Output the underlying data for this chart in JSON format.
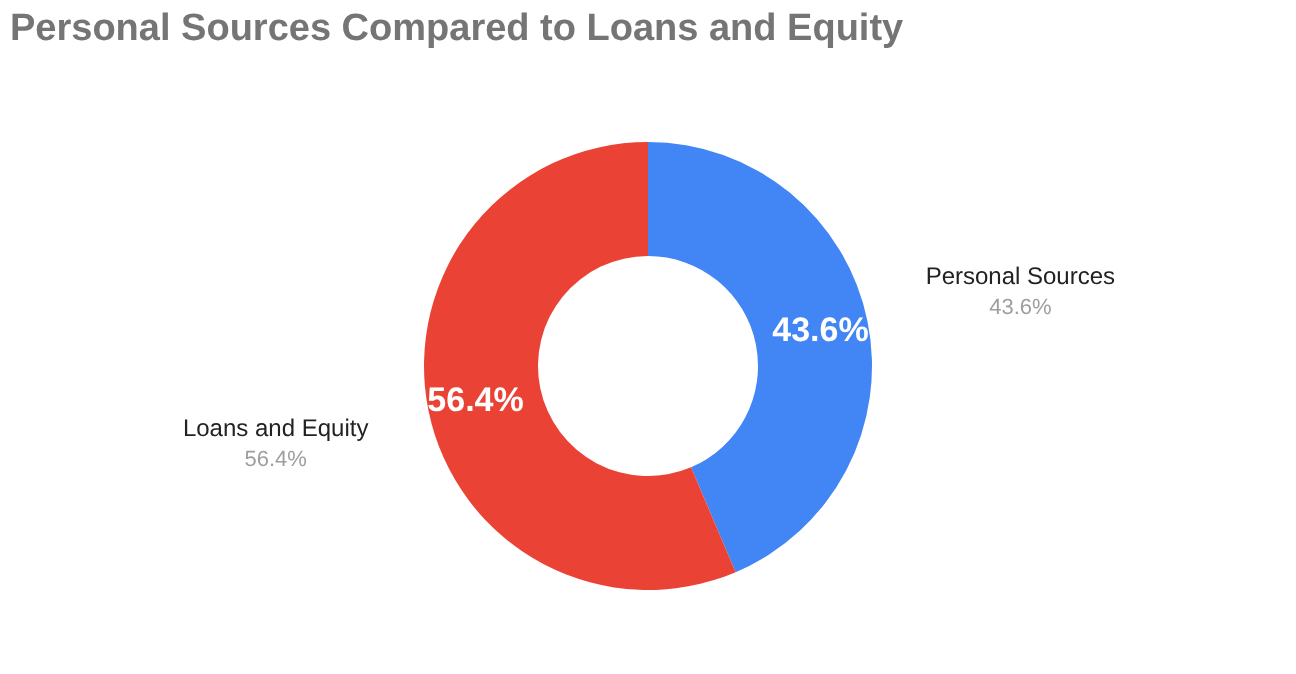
{
  "chart_data": {
    "type": "donut",
    "title": "Personal Sources Compared to Loans and Equity",
    "categories": [
      "Personal Sources",
      "Loans and Equity"
    ],
    "values": [
      43.6,
      56.4
    ],
    "colors": [
      "#4285f4",
      "#ea4335"
    ],
    "value_labels": [
      "43.6%",
      "56.4%"
    ],
    "legend": false
  }
}
